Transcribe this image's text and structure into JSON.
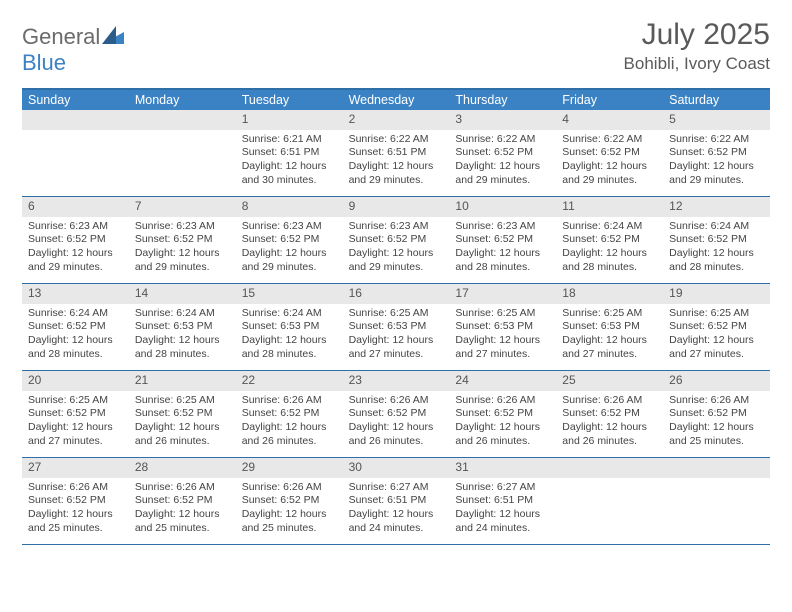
{
  "logo": {
    "text1": "General",
    "text2": "Blue"
  },
  "title": "July 2025",
  "location": "Bohibli, Ivory Coast",
  "colors": {
    "header_bg": "#3b82c4",
    "border": "#2f6fa8",
    "daynum_bg": "#e8e8e8",
    "text": "#444444"
  },
  "dow": [
    "Sunday",
    "Monday",
    "Tuesday",
    "Wednesday",
    "Thursday",
    "Friday",
    "Saturday"
  ],
  "weeks": [
    [
      null,
      null,
      {
        "n": "1",
        "sr": "6:21 AM",
        "ss": "6:51 PM",
        "dl": "12 hours and 30 minutes."
      },
      {
        "n": "2",
        "sr": "6:22 AM",
        "ss": "6:51 PM",
        "dl": "12 hours and 29 minutes."
      },
      {
        "n": "3",
        "sr": "6:22 AM",
        "ss": "6:52 PM",
        "dl": "12 hours and 29 minutes."
      },
      {
        "n": "4",
        "sr": "6:22 AM",
        "ss": "6:52 PM",
        "dl": "12 hours and 29 minutes."
      },
      {
        "n": "5",
        "sr": "6:22 AM",
        "ss": "6:52 PM",
        "dl": "12 hours and 29 minutes."
      }
    ],
    [
      {
        "n": "6",
        "sr": "6:23 AM",
        "ss": "6:52 PM",
        "dl": "12 hours and 29 minutes."
      },
      {
        "n": "7",
        "sr": "6:23 AM",
        "ss": "6:52 PM",
        "dl": "12 hours and 29 minutes."
      },
      {
        "n": "8",
        "sr": "6:23 AM",
        "ss": "6:52 PM",
        "dl": "12 hours and 29 minutes."
      },
      {
        "n": "9",
        "sr": "6:23 AM",
        "ss": "6:52 PM",
        "dl": "12 hours and 29 minutes."
      },
      {
        "n": "10",
        "sr": "6:23 AM",
        "ss": "6:52 PM",
        "dl": "12 hours and 28 minutes."
      },
      {
        "n": "11",
        "sr": "6:24 AM",
        "ss": "6:52 PM",
        "dl": "12 hours and 28 minutes."
      },
      {
        "n": "12",
        "sr": "6:24 AM",
        "ss": "6:52 PM",
        "dl": "12 hours and 28 minutes."
      }
    ],
    [
      {
        "n": "13",
        "sr": "6:24 AM",
        "ss": "6:52 PM",
        "dl": "12 hours and 28 minutes."
      },
      {
        "n": "14",
        "sr": "6:24 AM",
        "ss": "6:53 PM",
        "dl": "12 hours and 28 minutes."
      },
      {
        "n": "15",
        "sr": "6:24 AM",
        "ss": "6:53 PM",
        "dl": "12 hours and 28 minutes."
      },
      {
        "n": "16",
        "sr": "6:25 AM",
        "ss": "6:53 PM",
        "dl": "12 hours and 27 minutes."
      },
      {
        "n": "17",
        "sr": "6:25 AM",
        "ss": "6:53 PM",
        "dl": "12 hours and 27 minutes."
      },
      {
        "n": "18",
        "sr": "6:25 AM",
        "ss": "6:53 PM",
        "dl": "12 hours and 27 minutes."
      },
      {
        "n": "19",
        "sr": "6:25 AM",
        "ss": "6:52 PM",
        "dl": "12 hours and 27 minutes."
      }
    ],
    [
      {
        "n": "20",
        "sr": "6:25 AM",
        "ss": "6:52 PM",
        "dl": "12 hours and 27 minutes."
      },
      {
        "n": "21",
        "sr": "6:25 AM",
        "ss": "6:52 PM",
        "dl": "12 hours and 26 minutes."
      },
      {
        "n": "22",
        "sr": "6:26 AM",
        "ss": "6:52 PM",
        "dl": "12 hours and 26 minutes."
      },
      {
        "n": "23",
        "sr": "6:26 AM",
        "ss": "6:52 PM",
        "dl": "12 hours and 26 minutes."
      },
      {
        "n": "24",
        "sr": "6:26 AM",
        "ss": "6:52 PM",
        "dl": "12 hours and 26 minutes."
      },
      {
        "n": "25",
        "sr": "6:26 AM",
        "ss": "6:52 PM",
        "dl": "12 hours and 26 minutes."
      },
      {
        "n": "26",
        "sr": "6:26 AM",
        "ss": "6:52 PM",
        "dl": "12 hours and 25 minutes."
      }
    ],
    [
      {
        "n": "27",
        "sr": "6:26 AM",
        "ss": "6:52 PM",
        "dl": "12 hours and 25 minutes."
      },
      {
        "n": "28",
        "sr": "6:26 AM",
        "ss": "6:52 PM",
        "dl": "12 hours and 25 minutes."
      },
      {
        "n": "29",
        "sr": "6:26 AM",
        "ss": "6:52 PM",
        "dl": "12 hours and 25 minutes."
      },
      {
        "n": "30",
        "sr": "6:27 AM",
        "ss": "6:51 PM",
        "dl": "12 hours and 24 minutes."
      },
      {
        "n": "31",
        "sr": "6:27 AM",
        "ss": "6:51 PM",
        "dl": "12 hours and 24 minutes."
      },
      null,
      null
    ]
  ],
  "labels": {
    "sunrise": "Sunrise:",
    "sunset": "Sunset:",
    "daylight": "Daylight:"
  }
}
